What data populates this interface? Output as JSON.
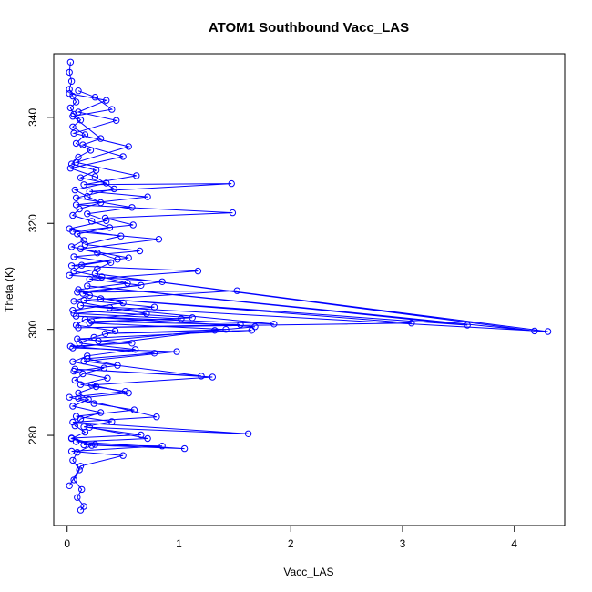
{
  "chart_data": {
    "type": "scatter",
    "title": "ATOM1 Southbound Vacc_LAS",
    "xlabel": "Vacc_LAS",
    "ylabel": "Theta (K)",
    "xlim": [
      -0.12,
      4.45
    ],
    "ylim": [
      263,
      352
    ],
    "xticks": [
      0,
      1,
      2,
      3,
      4
    ],
    "yticks": [
      280,
      300,
      320,
      340
    ],
    "series_color": "#0000ff",
    "marker": "open-circle-with-lines",
    "grid": false,
    "series": [
      {
        "values": [
          [
            0.03,
            350.4
          ],
          [
            0.02,
            348.5
          ],
          [
            0.04,
            346.8
          ],
          [
            0.02,
            345.3
          ],
          [
            0.05,
            344.0
          ],
          [
            0.08,
            342.9
          ],
          [
            0.03,
            341.8
          ],
          [
            0.06,
            340.6
          ],
          [
            0.12,
            339.5
          ],
          [
            0.05,
            338.2
          ],
          [
            0.16,
            336.7
          ],
          [
            0.08,
            335.1
          ],
          [
            0.21,
            333.8
          ],
          [
            0.1,
            332.5
          ],
          [
            0.04,
            331.2
          ],
          [
            0.26,
            330.0
          ],
          [
            0.12,
            328.6
          ],
          [
            0.35,
            327.6
          ],
          [
            0.07,
            326.3
          ],
          [
            0.18,
            325.1
          ],
          [
            0.3,
            323.9
          ],
          [
            0.11,
            322.7
          ],
          [
            0.05,
            321.5
          ],
          [
            0.22,
            320.4
          ],
          [
            0.38,
            319.2
          ],
          [
            0.09,
            318.0
          ],
          [
            0.15,
            316.8
          ],
          [
            0.04,
            315.6
          ],
          [
            0.27,
            314.4
          ],
          [
            0.45,
            313.2
          ],
          [
            0.13,
            312.1
          ],
          [
            0.06,
            311.0
          ],
          [
            0.31,
            309.9
          ],
          [
            0.54,
            308.7
          ],
          [
            0.1,
            307.5
          ],
          [
            0.2,
            306.4
          ],
          [
            0.06,
            305.3
          ],
          [
            0.38,
            304.1
          ],
          [
            0.71,
            303.0
          ],
          [
            0.16,
            301.9
          ],
          [
            0.08,
            300.8
          ],
          [
            0.43,
            299.7
          ],
          [
            0.24,
            298.5
          ],
          [
            0.11,
            297.4
          ],
          [
            0.61,
            296.2
          ],
          [
            0.18,
            295.0
          ],
          [
            0.05,
            293.9
          ],
          [
            0.33,
            292.7
          ],
          [
            0.14,
            291.6
          ],
          [
            0.07,
            290.4
          ],
          [
            0.26,
            289.2
          ],
          [
            0.1,
            288.0
          ],
          [
            0.19,
            286.8
          ],
          [
            0.05,
            285.5
          ],
          [
            0.3,
            284.3
          ],
          [
            0.12,
            283.1
          ],
          [
            0.07,
            281.8
          ],
          [
            0.16,
            280.6
          ],
          [
            0.04,
            279.4
          ],
          [
            0.22,
            278.1
          ],
          [
            0.09,
            276.8
          ],
          [
            0.05,
            275.3
          ],
          [
            0.11,
            273.5
          ],
          [
            0.06,
            271.6
          ],
          [
            0.13,
            269.8
          ],
          [
            0.09,
            268.3
          ],
          [
            0.15,
            266.6
          ],
          [
            0.12,
            265.9
          ]
        ]
      },
      {
        "values": [
          [
            0.02,
            344.5
          ],
          [
            0.35,
            343.2
          ],
          [
            0.1,
            341.0
          ],
          [
            0.44,
            339.4
          ],
          [
            0.06,
            337.0
          ],
          [
            0.55,
            334.5
          ],
          [
            0.08,
            331.5
          ],
          [
            0.62,
            329.0
          ],
          [
            0.15,
            327.3
          ],
          [
            1.47,
            327.5
          ],
          [
            0.2,
            326.0
          ],
          [
            0.72,
            325.0
          ],
          [
            0.08,
            323.5
          ],
          [
            1.48,
            322.0
          ],
          [
            0.34,
            321.0
          ],
          [
            0.59,
            319.7
          ],
          [
            0.05,
            318.5
          ],
          [
            0.82,
            317.0
          ],
          [
            0.12,
            315.2
          ],
          [
            0.55,
            313.5
          ],
          [
            0.04,
            312.0
          ],
          [
            1.17,
            311.0
          ],
          [
            0.2,
            309.5
          ],
          [
            0.66,
            308.3
          ],
          [
            0.09,
            307.0
          ],
          [
            1.52,
            307.3
          ],
          [
            0.15,
            305.5
          ],
          [
            0.78,
            304.2
          ],
          [
            0.06,
            303.0
          ],
          [
            1.02,
            302.0
          ],
          [
            0.22,
            301.5
          ],
          [
            1.55,
            300.9
          ],
          [
            0.1,
            300.3
          ],
          [
            3.08,
            301.2
          ],
          [
            0.3,
            305.8
          ],
          [
            3.58,
            300.8
          ],
          [
            0.18,
            308.2
          ],
          [
            4.18,
            299.7
          ],
          [
            0.25,
            310.5
          ],
          [
            4.3,
            299.6
          ],
          [
            0.12,
            304.5
          ],
          [
            1.85,
            301.0
          ],
          [
            0.08,
            302.5
          ],
          [
            1.68,
            300.5
          ],
          [
            0.28,
            297.8
          ],
          [
            1.32,
            299.8
          ],
          [
            0.05,
            296.5
          ],
          [
            0.98,
            295.8
          ],
          [
            0.15,
            294.0
          ],
          [
            1.2,
            291.2
          ],
          [
            0.07,
            292.5
          ],
          [
            1.3,
            291.0
          ],
          [
            0.22,
            289.5
          ],
          [
            0.55,
            288.0
          ],
          [
            0.1,
            287.0
          ],
          [
            0.8,
            283.5
          ],
          [
            0.05,
            282.5
          ],
          [
            1.62,
            280.3
          ],
          [
            0.2,
            281.5
          ],
          [
            0.72,
            279.4
          ],
          [
            0.08,
            278.8
          ],
          [
            1.05,
            277.5
          ],
          [
            0.15,
            278.2
          ],
          [
            0.85,
            278.0
          ],
          [
            0.04,
            277.0
          ],
          [
            0.5,
            276.2
          ],
          [
            0.12,
            274.2
          ],
          [
            0.02,
            270.5
          ]
        ]
      },
      {
        "values": [
          [
            0.1,
            345.0
          ],
          [
            0.25,
            343.8
          ],
          [
            0.4,
            341.5
          ],
          [
            0.05,
            340.2
          ],
          [
            0.3,
            336.0
          ],
          [
            0.14,
            334.8
          ],
          [
            0.5,
            332.6
          ],
          [
            0.03,
            330.4
          ],
          [
            0.25,
            328.8
          ],
          [
            0.42,
            326.5
          ],
          [
            0.08,
            324.8
          ],
          [
            0.58,
            323.0
          ],
          [
            0.18,
            321.8
          ],
          [
            0.35,
            320.5
          ],
          [
            0.02,
            319.0
          ],
          [
            0.48,
            317.6
          ],
          [
            0.16,
            316.0
          ],
          [
            0.65,
            314.8
          ],
          [
            0.06,
            313.7
          ],
          [
            0.39,
            312.6
          ],
          [
            0.27,
            311.4
          ],
          [
            0.02,
            310.2
          ],
          [
            0.85,
            309.0
          ],
          [
            0.14,
            306.8
          ],
          [
            0.5,
            305.0
          ],
          [
            0.05,
            303.6
          ],
          [
            1.12,
            302.2
          ],
          [
            0.2,
            301.2
          ],
          [
            1.42,
            300.0
          ],
          [
            0.34,
            299.2
          ],
          [
            1.65,
            299.8
          ],
          [
            0.09,
            298.2
          ],
          [
            0.58,
            297.4
          ],
          [
            0.03,
            296.8
          ],
          [
            0.78,
            295.5
          ],
          [
            0.18,
            294.5
          ],
          [
            0.45,
            293.2
          ],
          [
            0.06,
            292.1
          ],
          [
            0.36,
            290.8
          ],
          [
            0.12,
            289.6
          ],
          [
            0.52,
            288.3
          ],
          [
            0.02,
            287.2
          ],
          [
            0.24,
            286.0
          ],
          [
            0.6,
            284.8
          ],
          [
            0.08,
            283.6
          ],
          [
            0.4,
            282.6
          ],
          [
            0.15,
            281.6
          ],
          [
            0.66,
            280.1
          ],
          [
            0.04,
            279.5
          ],
          [
            0.25,
            278.3
          ]
        ]
      }
    ]
  }
}
